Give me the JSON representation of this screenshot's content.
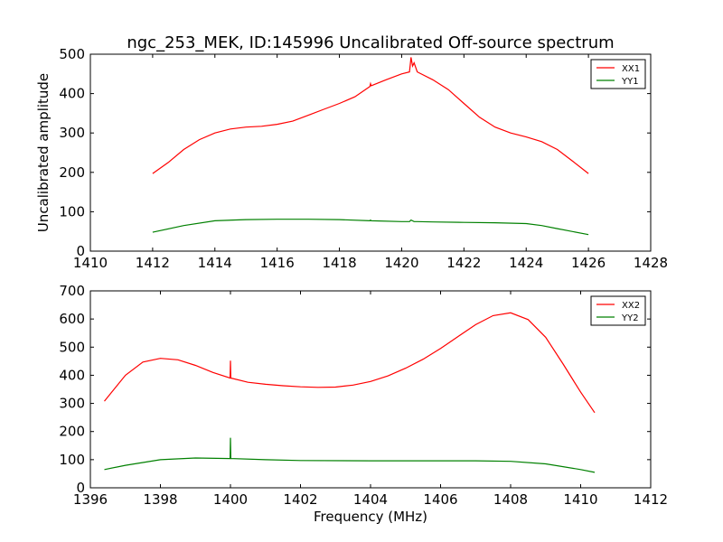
{
  "chart_data": [
    {
      "type": "line",
      "title": "ngc_253_MEK, ID:145996 Uncalibrated Off-source spectrum",
      "xlabel": "",
      "ylabel": "Uncalibrated amplitude",
      "xlim": [
        1410,
        1428
      ],
      "ylim": [
        0,
        500
      ],
      "xticks": [
        1410,
        1412,
        1414,
        1416,
        1418,
        1420,
        1422,
        1424,
        1426,
        1428
      ],
      "yticks": [
        0,
        100,
        200,
        300,
        400,
        500
      ],
      "legend_position": "top-right",
      "series": [
        {
          "name": "XX1",
          "color": "#ff0000",
          "x": [
            1412,
            1412.5,
            1413,
            1413.5,
            1414,
            1414.5,
            1415,
            1415.5,
            1416,
            1416.5,
            1417,
            1417.5,
            1418,
            1418.5,
            1418.98,
            1419,
            1419.02,
            1419.5,
            1420,
            1420.25,
            1420.3,
            1420.35,
            1420.4,
            1420.5,
            1421,
            1421.5,
            1422,
            1422.5,
            1423,
            1423.5,
            1424,
            1424.5,
            1425,
            1425.5,
            1426
          ],
          "y": [
            197,
            225,
            258,
            283,
            300,
            310,
            315,
            317,
            322,
            330,
            345,
            360,
            375,
            392,
            418,
            425,
            420,
            435,
            450,
            455,
            492,
            470,
            478,
            455,
            435,
            410,
            375,
            340,
            315,
            300,
            290,
            278,
            258,
            228,
            197
          ]
        },
        {
          "name": "YY1",
          "color": "#008000",
          "x": [
            1412,
            1413,
            1414,
            1415,
            1416,
            1417,
            1418,
            1418.98,
            1419,
            1419.02,
            1420,
            1420.25,
            1420.3,
            1420.4,
            1420.5,
            1421,
            1422,
            1423,
            1424,
            1424.5,
            1425,
            1426
          ],
          "y": [
            48,
            65,
            77,
            80,
            81,
            81,
            80,
            77,
            79,
            77,
            75,
            75,
            79,
            75,
            75,
            74,
            73,
            72,
            70,
            65,
            57,
            42
          ]
        }
      ]
    },
    {
      "type": "line",
      "title": "",
      "xlabel": "Frequency (MHz)",
      "ylabel": "",
      "xlim": [
        1396,
        1412
      ],
      "ylim": [
        0,
        700
      ],
      "xticks": [
        1396,
        1398,
        1400,
        1402,
        1404,
        1406,
        1408,
        1410,
        1412
      ],
      "yticks": [
        0,
        100,
        200,
        300,
        400,
        500,
        600,
        700
      ],
      "legend_position": "top-right",
      "series": [
        {
          "name": "XX2",
          "color": "#ff0000",
          "x": [
            1396.4,
            1397,
            1397.5,
            1398,
            1398.5,
            1399,
            1399.5,
            1399.99,
            1400,
            1400.01,
            1400.5,
            1401,
            1401.5,
            1402,
            1402.5,
            1403,
            1403.5,
            1404,
            1404.5,
            1405,
            1405.5,
            1406,
            1406.5,
            1407,
            1407.5,
            1408,
            1408.5,
            1409,
            1409.5,
            1410,
            1410.4
          ],
          "y": [
            308,
            400,
            447,
            460,
            455,
            435,
            410,
            390,
            452,
            390,
            375,
            368,
            363,
            359,
            357,
            358,
            365,
            378,
            398,
            425,
            457,
            495,
            538,
            580,
            612,
            622,
            598,
            535,
            440,
            340,
            267
          ]
        },
        {
          "name": "YY2",
          "color": "#008000",
          "x": [
            1396.4,
            1397,
            1398,
            1399,
            1399.99,
            1400,
            1400.01,
            1401,
            1402,
            1404,
            1406,
            1407,
            1408,
            1409,
            1410,
            1410.4
          ],
          "y": [
            65,
            80,
            100,
            106,
            104,
            178,
            104,
            100,
            97,
            96,
            96,
            96,
            94,
            85,
            65,
            55
          ]
        }
      ]
    }
  ]
}
